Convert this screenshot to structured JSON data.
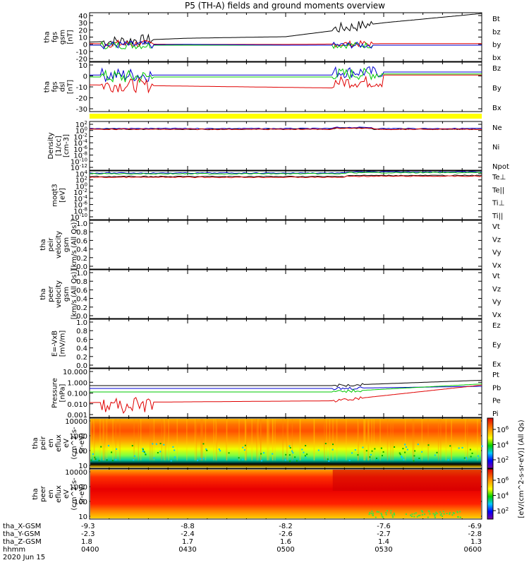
{
  "title": "P5 (TH-A) fields and ground moments overview",
  "colors": {
    "black": "#000000",
    "red": "#e00000",
    "green": "#00c800",
    "blue": "#0000d0",
    "yellow": "#ffff00"
  },
  "panels": [
    {
      "id": "fgs-gsm",
      "ylabel": [
        "tha",
        "fgs",
        "gsm",
        "[nT]"
      ],
      "yticks": [
        "40",
        "30",
        "20",
        "10",
        "0",
        "-10",
        "-20"
      ],
      "ylim": [
        -20,
        43
      ],
      "legend": [
        {
          "text": "Bt",
          "color": "#000000"
        },
        {
          "text": "bz",
          "color": "#e00000"
        },
        {
          "text": "by",
          "color": "#00c800"
        },
        {
          "text": "bx",
          "color": "#0000d0"
        }
      ]
    },
    {
      "id": "fgs-dsl",
      "ylabel": [
        "tha",
        "fgs",
        "dsl",
        "[nT]"
      ],
      "yticks": [
        "10",
        "0",
        "-10",
        "-20",
        "-30"
      ],
      "ylim": [
        -35,
        15
      ],
      "legend": [
        {
          "text": "Bz",
          "color": "#e00000"
        },
        {
          "text": "By",
          "color": "#00c800"
        },
        {
          "text": "Bx",
          "color": "#0000d0"
        }
      ]
    },
    {
      "id": "density",
      "ylabel": [
        "Density",
        "[1/cc]",
        "[cm-3]"
      ],
      "yticks": [
        {
          "base": "10",
          "exp": "2"
        },
        {
          "base": "10",
          "exp": "0"
        },
        {
          "base": "10",
          "exp": "-2"
        },
        {
          "base": "10",
          "exp": "-4"
        },
        {
          "base": "10",
          "exp": "-6"
        },
        {
          "base": "10",
          "exp": "-8"
        },
        {
          "base": "10",
          "exp": "-10"
        },
        {
          "base": "10",
          "exp": "-12"
        }
      ],
      "legend": [
        {
          "text": "Ne",
          "color": "#e00000"
        },
        {
          "text": "Ni",
          "color": "#000000"
        },
        {
          "text": "Npot",
          "color": "#0000d0"
        }
      ]
    },
    {
      "id": "temp",
      "ylabel": [
        "moqt3",
        "[eV]"
      ],
      "yticks": [
        {
          "base": "10",
          "exp": "4"
        },
        {
          "base": "10",
          "exp": "2"
        },
        {
          "base": "10",
          "exp": "0"
        },
        {
          "base": "10",
          "exp": "-2"
        },
        {
          "base": "10",
          "exp": "-4"
        },
        {
          "base": "10",
          "exp": "-6"
        },
        {
          "base": "10",
          "exp": "-8"
        },
        {
          "base": "10",
          "exp": "-10"
        }
      ],
      "legend": [
        {
          "text": "Te⊥",
          "color": "#e00000"
        },
        {
          "text": "Te||",
          "color": "#000000"
        },
        {
          "text": "Ti⊥",
          "color": "#0000d0"
        },
        {
          "text": "Ti||",
          "color": "#00c800"
        }
      ]
    },
    {
      "id": "peir-vel",
      "ylabel": [
        "tha",
        "peir",
        "velocity",
        "gsm",
        "[km/s (All Qs)]"
      ],
      "yticks": [
        "1.0",
        "0.8",
        "0.6",
        "0.4",
        "0.2",
        "0.0"
      ],
      "legend": [
        {
          "text": "Vt",
          "color": "#000000"
        },
        {
          "text": "Vz",
          "color": "#e00000"
        },
        {
          "text": "Vy",
          "color": "#00c800"
        },
        {
          "text": "Vx",
          "color": "#0000d0"
        }
      ]
    },
    {
      "id": "peer-vel",
      "ylabel": [
        "tha",
        "peer",
        "velocity",
        "gsm",
        "[km/s (All Qs)]"
      ],
      "yticks": [
        "1.0",
        "0.8",
        "0.6",
        "0.4",
        "0.2",
        "0.0"
      ],
      "legend": [
        {
          "text": "Vt",
          "color": "#000000"
        },
        {
          "text": "Vz",
          "color": "#e00000"
        },
        {
          "text": "Vy",
          "color": "#00c800"
        },
        {
          "text": "Vx",
          "color": "#0000d0"
        }
      ]
    },
    {
      "id": "efield",
      "ylabel": [
        "E=-VxB",
        "[mV/m]"
      ],
      "yticks": [
        "1.0",
        "0.8",
        "0.6",
        "0.4",
        "0.2",
        "0.0"
      ],
      "legend": [
        {
          "text": "Ez",
          "color": "#e00000"
        },
        {
          "text": "Ey",
          "color": "#00c800"
        },
        {
          "text": "Ex",
          "color": "#0000d0"
        }
      ]
    },
    {
      "id": "pressure",
      "ylabel": [
        "Pressure",
        "[nPa]"
      ],
      "yticks": [
        "10.000",
        "1.000",
        "0.100",
        "0.010",
        "0.001"
      ],
      "legend": [
        {
          "text": "Pt",
          "color": "#000000"
        },
        {
          "text": "Pb",
          "color": "#e00000"
        },
        {
          "text": "Pe",
          "color": "#00c800"
        },
        {
          "text": "Pi",
          "color": "#0000d0"
        }
      ]
    },
    {
      "id": "peir-spec",
      "ylabel": [
        "tha",
        "peir",
        "en",
        "eflux",
        "eV",
        "(cm^2-s-",
        "sr-eV)"
      ],
      "yticks": [
        "10000",
        "1000",
        "100",
        "10"
      ]
    },
    {
      "id": "peer-spec",
      "ylabel": [
        "tha",
        "peer",
        "en",
        "eflux",
        "eV",
        "(cm^2-s-",
        "sr-eV)"
      ],
      "yticks": [
        "10000",
        "1000",
        "100",
        "10"
      ]
    }
  ],
  "colorbars": [
    {
      "ticks": [
        {
          "base": "10",
          "exp": "6"
        },
        {
          "base": "10",
          "exp": "4"
        },
        {
          "base": "10",
          "exp": "2"
        }
      ]
    },
    {
      "ticks": [
        {
          "base": "10",
          "exp": "6"
        },
        {
          "base": "10",
          "exp": "4"
        },
        {
          "base": "10",
          "exp": "2"
        }
      ]
    }
  ],
  "colorbar_label": "[eV/(cm^2-s-sr-eV)] (All Qs)",
  "xaxis": {
    "rows": [
      {
        "label": "tha_X-GSM",
        "values": [
          "-9.3",
          "-8.8",
          "-8.2",
          "-7.6",
          "-6.9"
        ]
      },
      {
        "label": "tha_Y-GSM",
        "values": [
          "-2.3",
          "-2.4",
          "-2.6",
          "-2.7",
          "-2.8"
        ]
      },
      {
        "label": "tha_Z-GSM",
        "values": [
          "1.8",
          "1.7",
          "1.6",
          "1.4",
          "1.3"
        ]
      },
      {
        "label": "hhmm",
        "values": [
          "0400",
          "0430",
          "0500",
          "0530",
          "0600"
        ]
      }
    ],
    "date": "2020 Jun 15"
  },
  "chart_data": {
    "type": "line",
    "title": "P5 (TH-A) fields and ground moments overview",
    "x": [
      "0400",
      "0430",
      "0500",
      "0530",
      "0600"
    ],
    "xlabel": "hhmm",
    "series": [
      {
        "name": "Bt",
        "values": [
          5,
          10,
          12,
          28,
          40
        ]
      },
      {
        "name": "bz",
        "values": [
          3,
          2,
          2,
          3,
          3
        ]
      },
      {
        "name": "by",
        "values": [
          1,
          1,
          1,
          1,
          1
        ]
      },
      {
        "name": "bx",
        "values": [
          1,
          2,
          1,
          1,
          1
        ]
      }
    ]
  }
}
